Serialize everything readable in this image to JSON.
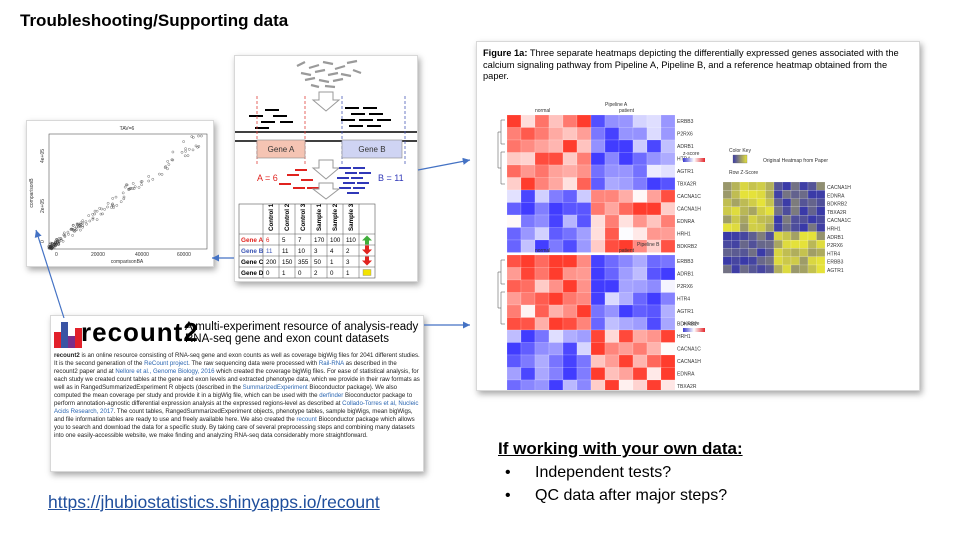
{
  "slide_title": "Troubleshooting/Supporting data",
  "scatter": {
    "title": "TAV=6",
    "ylabel": "comparisonB",
    "xlabel": "comparisonBA",
    "x_ticks": [
      "0",
      "20000",
      "40000",
      "60000"
    ],
    "y_ticks": [
      "0",
      "2e+05",
      "4e+05"
    ]
  },
  "diagram": {
    "gene_a_label": "Gene A",
    "gene_b_label": "Gene B",
    "count_a": "A = 6",
    "count_b": "B = 11",
    "columns": [
      "Control 1",
      "Control 2",
      "Control 3",
      "Sample 1",
      "Sample 2",
      "Sample 3"
    ],
    "rows": [
      {
        "gene": "Gene A",
        "values": [
          "6",
          "5",
          "7",
          "170",
          "100",
          "110"
        ],
        "trend": "up"
      },
      {
        "gene": "Gene B",
        "values": [
          "11",
          "11",
          "10",
          "3",
          "4",
          "2"
        ],
        "trend": "down"
      },
      {
        "gene": "Gene C",
        "values": [
          "200",
          "150",
          "355",
          "50",
          "1",
          "3"
        ],
        "trend": "down"
      },
      {
        "gene": "Gene D",
        "values": [
          "0",
          "1",
          "0",
          "2",
          "0",
          "1"
        ],
        "trend": "flat"
      }
    ]
  },
  "recount": {
    "logo_word": "recount",
    "logo_number": "2",
    "headline": "A multi-experiment resource of analysis-ready RNA-seq gene and exon count datasets",
    "para_1": "is an online resource consisting of RNA-seq gene and exon counts as well as coverage bigWig files for 2041 different studies. It is the second generation of the",
    "para_1_bold": "recount2",
    "link_recount_project": "ReCount project",
    "para_2": ". The raw sequencing data were processed with",
    "link_rail": "Rail-RNA",
    "para_3": "as described in the recount2 paper and at",
    "link_nellore": "Nellore et al., Genome Biology, 2016",
    "para_4": "which created the coverage bigWig files. For ease of statistical analysis, for each study we created count tables at the gene and exon levels and extracted phenotype data, which we provide in their raw formats as well as in RangedSummarizedExperiment R objects (described in the",
    "link_rse": "SummarizedExperiment",
    "para_5": "Bioconductor package). We also computed the mean coverage per study and provide it in a bigWig file, which can be used with the",
    "link_derfinder": "derfinder",
    "para_6": "Bioconductor package to perform annotation-agnostic differential expression analysis at the expressed regions-level as described at",
    "link_collado": "Collado-Torres et al, Nucleic Acids Research, 2017",
    "para_7": ". The count tables, RangedSummarizedExperiment objects, phenotype tables, sample bigWigs, mean bigWigs, and file information tables are ready to use and freely available here. We also created the",
    "link_recount_pkg": "recount",
    "para_8": "Bioconductor package which allows you to search and download the data for a specific study. By taking care of several preprocessing steps and combining many datasets into one easily-accessible website, we make finding and analyzing RNA-seq data considerably more straightforward."
  },
  "figure": {
    "caption_bold": "Figure 1a:",
    "caption": "Three separate heatmaps depicting the differentially expressed genes associated with the calcium signaling pathway from Pipeline A, Pipeline B, and a reference heatmap obtained from the paper.",
    "pipeline_a": "Pipeline A",
    "pipeline_b": "Pipeline B",
    "group_normal": "normal",
    "group_patient": "patient",
    "zscore_label": "z-score",
    "color_key": "Color Key",
    "row_z": "Row Z-Score",
    "ref_title": "Original Heatmap from Paper",
    "ref_genes": [
      "CACNA1H",
      "EDNRA",
      "BDKRB2",
      "TBXA2R",
      "CACNA1C",
      "HRH1",
      "ADRB1",
      "P2RX6",
      "HTR4",
      "ERBB3",
      "AGTR1"
    ],
    "pipe_a_genes": [
      "ERBB3",
      "P2RX6",
      "ADRB1",
      "HTR4",
      "AGTR1",
      "TBXA2R",
      "CACNA1C",
      "CACNA1H",
      "EDNRA",
      "HRH1",
      "BDKRB2"
    ],
    "pipe_b_genes": [
      "ERBB3",
      "ADRB1",
      "P2RX6",
      "HTR4",
      "AGTR1",
      "BDKRB2",
      "HRH1",
      "CACNA1C",
      "CACNA1H",
      "EDNRA",
      "TBXA2R"
    ]
  },
  "link_url": "https://jhubiostatistics.shinyapps.io/recount",
  "own_data": {
    "heading": "If working with your own data:",
    "bullets": [
      "Independent tests?",
      "QC data after major steps?"
    ]
  }
}
